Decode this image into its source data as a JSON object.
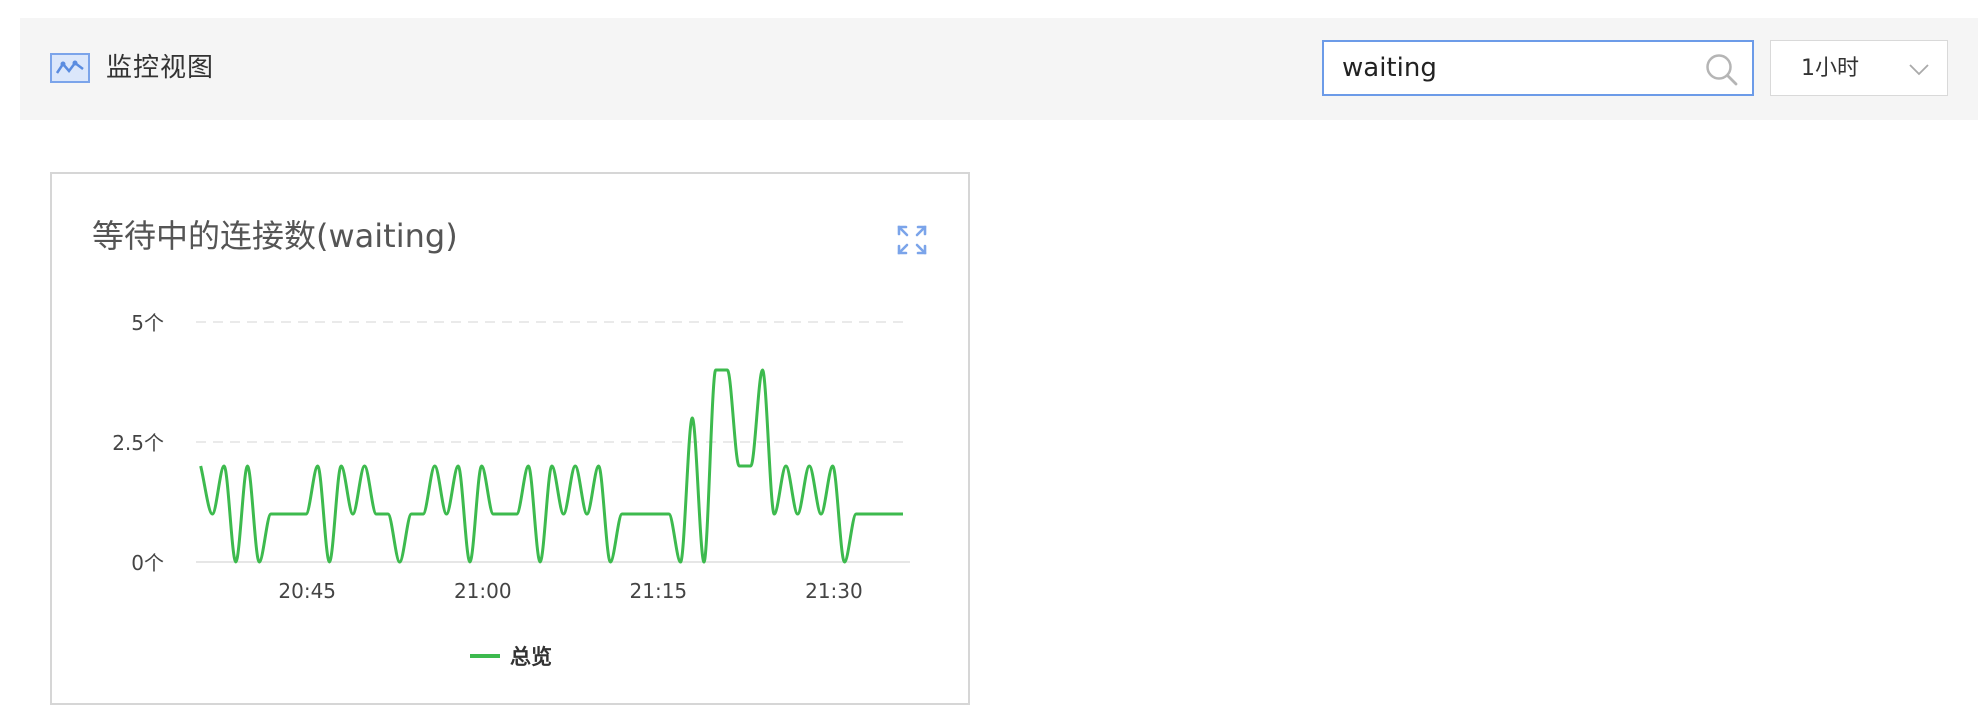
{
  "header": {
    "title": "监控视图",
    "icon": "line-chart-icon",
    "search": {
      "value": "waiting",
      "icon": "search-icon"
    },
    "time_range": {
      "selected": "1小时",
      "icon": "chevron-down-icon"
    }
  },
  "card": {
    "title": "等待中的连接数(waiting)",
    "expand_icon": "expand-icon"
  },
  "chart_data": {
    "type": "line",
    "title": "等待中的连接数(waiting)",
    "xlabel": "",
    "ylabel": "",
    "y_ticks": [
      "0个",
      "2.5个",
      "5个"
    ],
    "ylim": [
      0,
      5
    ],
    "x_ticks": [
      "20:45",
      "21:00",
      "21:15",
      "21:30"
    ],
    "x_tick_values": [
      45,
      60,
      75,
      90
    ],
    "xlim": [
      35.5,
      96.5
    ],
    "grid": true,
    "legend_position": "bottom",
    "accent_color": "#3dba4e",
    "series": [
      {
        "name": "总览",
        "color": "#3dba4e",
        "x": [
          35.9,
          36.9,
          37.9,
          38.9,
          39.9,
          40.9,
          41.9,
          42.9,
          43.9,
          44.9,
          45.9,
          46.9,
          47.9,
          48.9,
          49.9,
          50.9,
          51.9,
          52.9,
          53.9,
          54.9,
          55.9,
          56.9,
          57.9,
          58.9,
          59.9,
          60.9,
          61.9,
          62.9,
          63.9,
          64.9,
          65.9,
          66.9,
          67.9,
          68.9,
          69.9,
          70.9,
          71.9,
          72.9,
          73.9,
          74.9,
          75.9,
          76.9,
          77.9,
          78.9,
          79.9,
          80.9,
          81.9,
          82.9,
          83.9,
          84.9,
          85.9,
          86.9,
          87.9,
          88.9,
          89.9,
          90.9,
          91.9,
          92.9,
          93.9,
          94.9,
          95.9
        ],
        "values": [
          2,
          1,
          2,
          0,
          2,
          0,
          1,
          1,
          1,
          1,
          2,
          0,
          2,
          1,
          2,
          1,
          1,
          0,
          1,
          1,
          2,
          1,
          2,
          0,
          2,
          1,
          1,
          1,
          2,
          0,
          2,
          1,
          2,
          1,
          2,
          0,
          1,
          1,
          1,
          1,
          1,
          0,
          3,
          0,
          4,
          4,
          2,
          2,
          4,
          1,
          2,
          1,
          2,
          1,
          2,
          0,
          1,
          1,
          1,
          1,
          1
        ]
      }
    ]
  }
}
